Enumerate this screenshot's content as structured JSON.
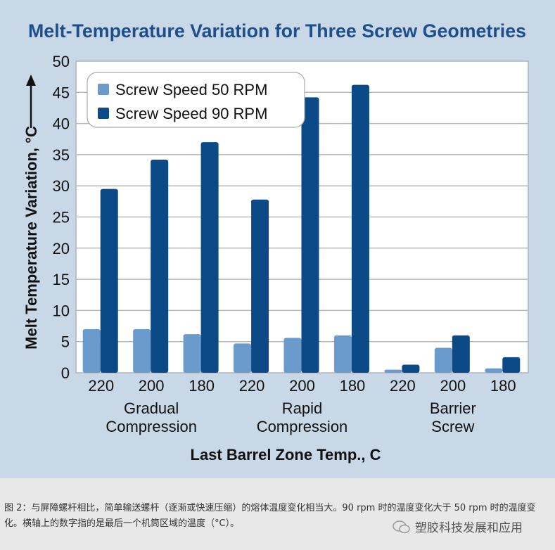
{
  "chart_data": {
    "type": "bar",
    "title": "Melt-Temperature Variation for Three Screw Geometries",
    "xlabel": "Last Barrel Zone Temp., C",
    "ylabel": "Melt Temperature Variation, °C",
    "ylim": [
      0,
      50
    ],
    "yticks": [
      0,
      5,
      10,
      15,
      20,
      25,
      30,
      35,
      40,
      45,
      50
    ],
    "grid": true,
    "legend_position": "top-left",
    "categories": [
      "220",
      "200",
      "180",
      "220",
      "200",
      "180",
      "220",
      "200",
      "180"
    ],
    "groups": [
      {
        "label_line1": "Gradual",
        "label_line2": "Compression"
      },
      {
        "label_line1": "Rapid",
        "label_line2": "Compression"
      },
      {
        "label_line1": "Barrier",
        "label_line2": "Screw"
      }
    ],
    "series": [
      {
        "name": "Screw Speed 50 RPM",
        "color": "#6b9bcc",
        "values": [
          7.0,
          7.0,
          6.2,
          4.7,
          5.6,
          6.0,
          0.5,
          4.0,
          0.7
        ]
      },
      {
        "name": "Screw Speed 90 RPM",
        "color": "#0b4a86",
        "values": [
          29.5,
          34.2,
          37.0,
          27.8,
          44.2,
          46.2,
          1.3,
          6.0,
          2.5
        ]
      }
    ]
  },
  "caption": {
    "text": "图 2：与屏障螺杆相比，简单输送螺杆（逐渐或快速压缩）的熔体温度变化相当大。90 rpm 时的温度变化大于 50 rpm 时的温度变化。横轴上的数字指的是最后一个机筒区域的温度（°C）。"
  },
  "watermark": {
    "text": "塑胶科技发展和应用"
  },
  "colors": {
    "title": "#1d4f8c",
    "panel": "#c9d8e7"
  }
}
